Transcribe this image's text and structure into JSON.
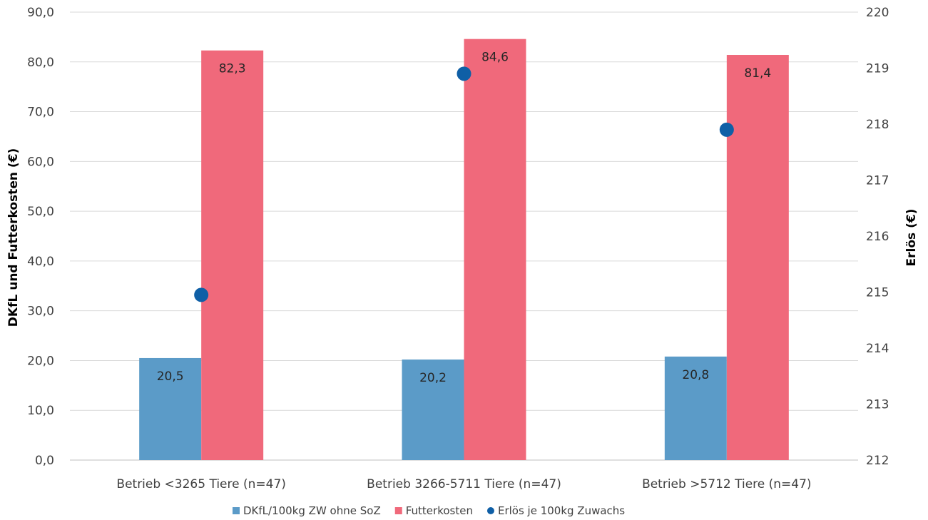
{
  "chart_data": {
    "type": "bar",
    "categories": [
      "Betrieb <3265 Tiere (n=47)",
      "Betrieb 3266-5711 Tiere (n=47)",
      "Betrieb >5712 Tiere (n=47)"
    ],
    "series": [
      {
        "name": "DKfL/100kg ZW ohne SoZ",
        "type": "bar",
        "axis": "left",
        "color": "#5b9bc8",
        "values": [
          20.5,
          20.2,
          20.8
        ],
        "labels": [
          "20,5",
          "20,2",
          "20,8"
        ]
      },
      {
        "name": "Futterkosten",
        "type": "bar",
        "axis": "left",
        "color": "#f0697b",
        "values": [
          82.3,
          84.6,
          81.4
        ],
        "labels": [
          "82,3",
          "84,6",
          "81,4"
        ]
      },
      {
        "name": "Erlös je 100kg Zuwachs",
        "type": "scatter",
        "axis": "right",
        "color": "#0f5fa6",
        "values": [
          214.95,
          218.9,
          217.9
        ]
      }
    ],
    "ylabel": "DKfL und Futterkosten (€)",
    "ylabel_right": "Erlös (€)",
    "ylim": [
      0,
      90
    ],
    "ylim_right": [
      212,
      220
    ],
    "yticks": [
      "0,0",
      "10,0",
      "20,0",
      "30,0",
      "40,0",
      "50,0",
      "60,0",
      "70,0",
      "80,0",
      "90,0"
    ],
    "yticks_right": [
      "212",
      "213",
      "214",
      "215",
      "216",
      "217",
      "218",
      "219",
      "220"
    ],
    "grid": true,
    "legend_position": "bottom"
  }
}
